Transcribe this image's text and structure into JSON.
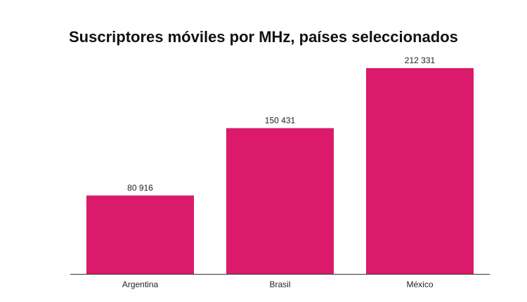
{
  "chart_data": {
    "type": "bar",
    "title": "Suscriptores móviles por MHz, países seleccionados",
    "categories": [
      "Argentina",
      "Brasil",
      "México"
    ],
    "values": [
      80916,
      150431,
      212331
    ],
    "value_labels": [
      "80 916",
      "150 431",
      "212 331"
    ],
    "xlabel": "",
    "ylabel": "",
    "ylim": [
      0,
      212331
    ],
    "grid": false,
    "legend": "none",
    "bar_color": "#DC1A6B",
    "axis_color": "#333333"
  }
}
